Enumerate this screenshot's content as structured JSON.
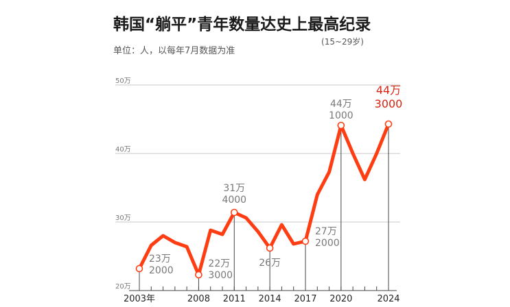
{
  "chart_data": {
    "type": "line",
    "title": "韩国“躺平”青年数量达史上最高纪录",
    "subtitle": "单位：人，以每年7月数据为准",
    "note": "(15~29岁)",
    "x": [
      2003,
      2004,
      2005,
      2006,
      2007,
      2008,
      2009,
      2010,
      2011,
      2012,
      2013,
      2014,
      2015,
      2016,
      2017,
      2018,
      2019,
      2020,
      2021,
      2022,
      2023,
      2024
    ],
    "values": [
      232000,
      266000,
      280000,
      270000,
      264000,
      223000,
      288000,
      282000,
      314000,
      306000,
      286000,
      262000,
      296000,
      268000,
      272000,
      340000,
      373000,
      441000,
      400000,
      362000,
      400000,
      443000
    ],
    "ylim": [
      200000,
      500000
    ],
    "yticks": [
      {
        "value": 200000,
        "label": "20万"
      },
      {
        "value": 300000,
        "label": "30万"
      },
      {
        "value": 400000,
        "label": "40万"
      },
      {
        "value": 500000,
        "label": "50万"
      }
    ],
    "xticks": [
      {
        "value": 2003,
        "label": "2003年"
      },
      {
        "value": 2008,
        "label": "2008"
      },
      {
        "value": 2011,
        "label": "2011"
      },
      {
        "value": 2014,
        "label": "2014"
      },
      {
        "value": 2017,
        "label": "2017"
      },
      {
        "value": 2020,
        "label": "2020"
      },
      {
        "value": 2024,
        "label": "2024"
      }
    ],
    "annotations": [
      {
        "x": 2003,
        "lines": [
          "23万",
          "2000"
        ],
        "highlight": false
      },
      {
        "x": 2008,
        "lines": [
          "22万",
          "3000"
        ],
        "highlight": false
      },
      {
        "x": 2011,
        "lines": [
          "31万",
          "4000"
        ],
        "highlight": false
      },
      {
        "x": 2014,
        "lines": [
          "26万"
        ],
        "highlight": false
      },
      {
        "x": 2017,
        "lines": [
          "27万",
          "2000"
        ],
        "highlight": false
      },
      {
        "x": 2020,
        "lines": [
          "44万",
          "1000"
        ],
        "highlight": false
      },
      {
        "x": 2024,
        "lines": [
          "44万",
          "3000"
        ],
        "highlight": true
      }
    ],
    "marked_points": [
      2003,
      2008,
      2011,
      2014,
      2017,
      2020,
      2024
    ],
    "grid": true,
    "line_color": "#ff3d12",
    "highlight_color": "#d9230f"
  }
}
